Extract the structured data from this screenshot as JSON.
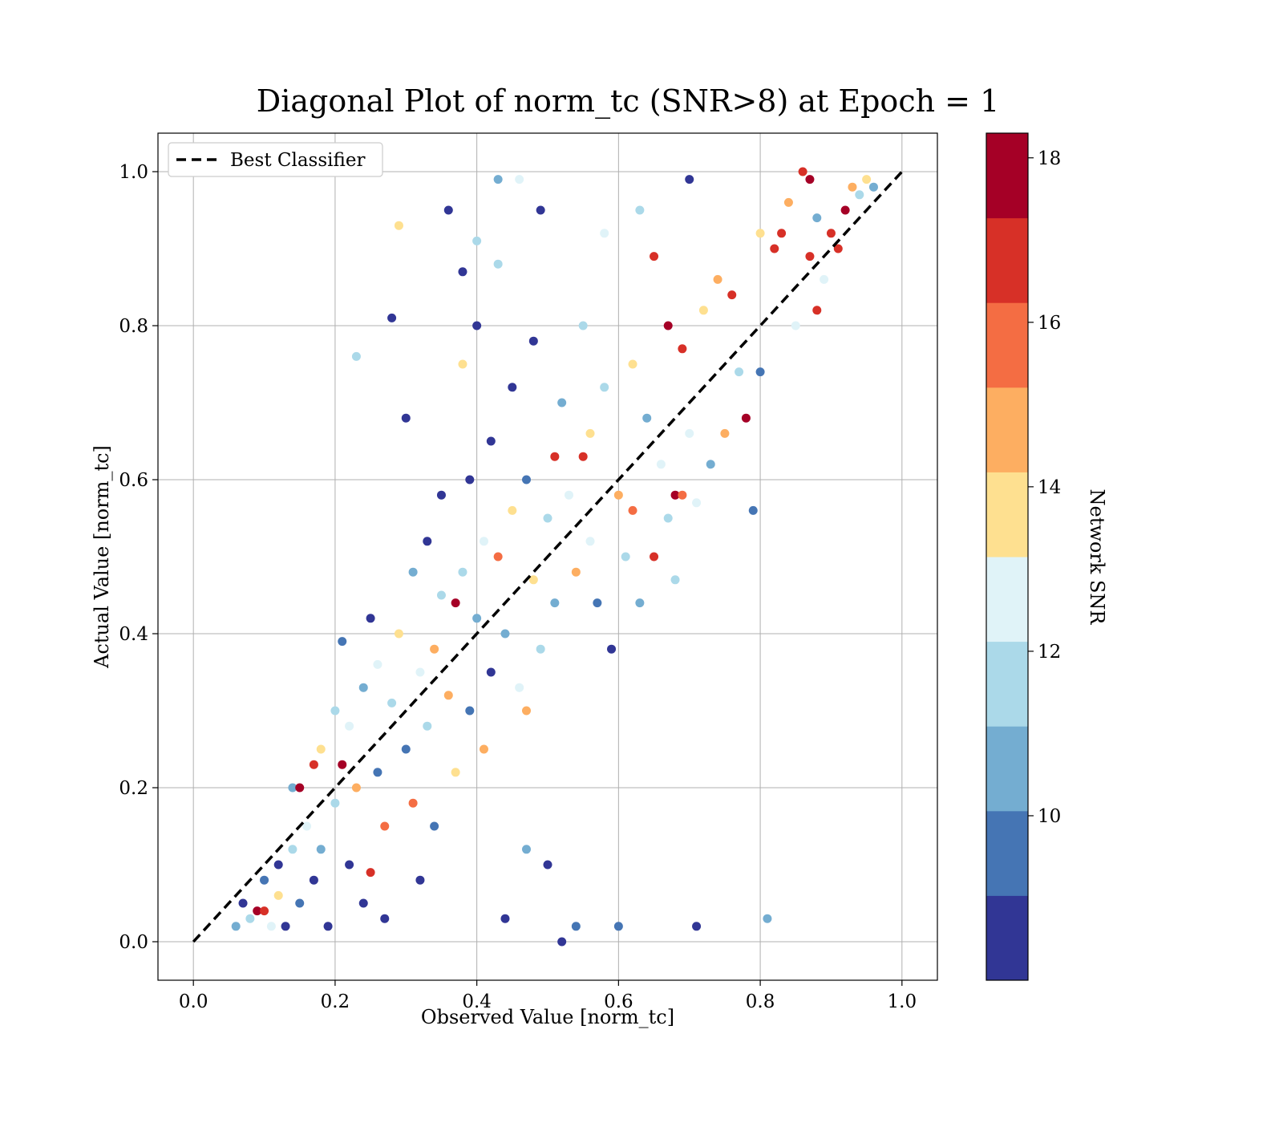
{
  "chart_data": {
    "type": "scatter",
    "title": "Diagonal Plot of norm_tc (SNR>8) at Epoch = 1",
    "xlabel": "Observed Value [norm_tc]",
    "ylabel": "Actual Value [norm_tc]",
    "xlim": [
      -0.05,
      1.05
    ],
    "ylim": [
      -0.05,
      1.05
    ],
    "xticks": [
      "0.0",
      "0.2",
      "0.4",
      "0.6",
      "0.8",
      "1.0"
    ],
    "yticks": [
      "0.0",
      "0.2",
      "0.4",
      "0.6",
      "0.8",
      "1.0"
    ],
    "grid": true,
    "legend": {
      "position": "upper-left",
      "entries": [
        {
          "label": "Best Classifier",
          "style": "black dashed line",
          "x": [
            0,
            1
          ],
          "y": [
            0,
            1
          ]
        }
      ]
    },
    "colorbar": {
      "label": "Network SNR",
      "range": [
        8,
        18.3
      ],
      "ticks": [
        "10",
        "12",
        "14",
        "16",
        "18"
      ],
      "tick_values": [
        10,
        12,
        14,
        16,
        18
      ],
      "colors": [
        "#313695",
        "#4575b4",
        "#74add1",
        "#abd9e9",
        "#e0f3f8",
        "#fee090",
        "#fdae61",
        "#f46d43",
        "#d73027",
        "#a50026"
      ]
    },
    "series": [
      {
        "name": "Network SNR",
        "points": [
          {
            "x": 0.06,
            "y": 0.02,
            "c": 11
          },
          {
            "x": 0.07,
            "y": 0.05,
            "c": 8.5
          },
          {
            "x": 0.08,
            "y": 0.03,
            "c": 12
          },
          {
            "x": 0.09,
            "y": 0.04,
            "c": 17.5
          },
          {
            "x": 0.1,
            "y": 0.04,
            "c": 17
          },
          {
            "x": 0.1,
            "y": 0.08,
            "c": 10
          },
          {
            "x": 0.11,
            "y": 0.02,
            "c": 12.5
          },
          {
            "x": 0.12,
            "y": 0.1,
            "c": 9
          },
          {
            "x": 0.12,
            "y": 0.06,
            "c": 13.5
          },
          {
            "x": 0.13,
            "y": 0.02,
            "c": 8.5
          },
          {
            "x": 0.14,
            "y": 0.12,
            "c": 11.5
          },
          {
            "x": 0.14,
            "y": 0.2,
            "c": 11
          },
          {
            "x": 0.15,
            "y": 0.2,
            "c": 17.5
          },
          {
            "x": 0.15,
            "y": 0.05,
            "c": 9.5
          },
          {
            "x": 0.16,
            "y": 0.15,
            "c": 13
          },
          {
            "x": 0.17,
            "y": 0.23,
            "c": 17
          },
          {
            "x": 0.17,
            "y": 0.08,
            "c": 8.5
          },
          {
            "x": 0.18,
            "y": 0.25,
            "c": 14
          },
          {
            "x": 0.18,
            "y": 0.12,
            "c": 10.5
          },
          {
            "x": 0.19,
            "y": 0.02,
            "c": 8.5
          },
          {
            "x": 0.2,
            "y": 0.3,
            "c": 12
          },
          {
            "x": 0.2,
            "y": 0.18,
            "c": 11.5
          },
          {
            "x": 0.21,
            "y": 0.23,
            "c": 17.5
          },
          {
            "x": 0.21,
            "y": 0.39,
            "c": 9.5
          },
          {
            "x": 0.22,
            "y": 0.1,
            "c": 8.5
          },
          {
            "x": 0.22,
            "y": 0.28,
            "c": 13
          },
          {
            "x": 0.23,
            "y": 0.2,
            "c": 15
          },
          {
            "x": 0.23,
            "y": 0.76,
            "c": 11.5
          },
          {
            "x": 0.24,
            "y": 0.33,
            "c": 11
          },
          {
            "x": 0.24,
            "y": 0.05,
            "c": 9
          },
          {
            "x": 0.25,
            "y": 0.09,
            "c": 17
          },
          {
            "x": 0.25,
            "y": 0.42,
            "c": 8.5
          },
          {
            "x": 0.26,
            "y": 0.36,
            "c": 12.5
          },
          {
            "x": 0.26,
            "y": 0.22,
            "c": 10
          },
          {
            "x": 0.27,
            "y": 0.15,
            "c": 15.5
          },
          {
            "x": 0.27,
            "y": 0.03,
            "c": 8.5
          },
          {
            "x": 0.28,
            "y": 0.81,
            "c": 8.5
          },
          {
            "x": 0.28,
            "y": 0.31,
            "c": 11.5
          },
          {
            "x": 0.29,
            "y": 0.93,
            "c": 13.5
          },
          {
            "x": 0.29,
            "y": 0.4,
            "c": 14
          },
          {
            "x": 0.3,
            "y": 0.68,
            "c": 8.5
          },
          {
            "x": 0.3,
            "y": 0.25,
            "c": 9.5
          },
          {
            "x": 0.31,
            "y": 0.18,
            "c": 16
          },
          {
            "x": 0.31,
            "y": 0.48,
            "c": 11
          },
          {
            "x": 0.32,
            "y": 0.35,
            "c": 13
          },
          {
            "x": 0.32,
            "y": 0.08,
            "c": 8.5
          },
          {
            "x": 0.33,
            "y": 0.52,
            "c": 8.5
          },
          {
            "x": 0.33,
            "y": 0.28,
            "c": 12
          },
          {
            "x": 0.34,
            "y": 0.38,
            "c": 14.5
          },
          {
            "x": 0.34,
            "y": 0.15,
            "c": 10
          },
          {
            "x": 0.35,
            "y": 0.58,
            "c": 9
          },
          {
            "x": 0.35,
            "y": 0.45,
            "c": 11.5
          },
          {
            "x": 0.36,
            "y": 0.95,
            "c": 8.5
          },
          {
            "x": 0.36,
            "y": 0.32,
            "c": 15
          },
          {
            "x": 0.37,
            "y": 0.44,
            "c": 17.5
          },
          {
            "x": 0.37,
            "y": 0.22,
            "c": 13.5
          },
          {
            "x": 0.38,
            "y": 0.75,
            "c": 14
          },
          {
            "x": 0.38,
            "y": 0.87,
            "c": 8.5
          },
          {
            "x": 0.38,
            "y": 0.48,
            "c": 12
          },
          {
            "x": 0.39,
            "y": 0.3,
            "c": 9.5
          },
          {
            "x": 0.39,
            "y": 0.6,
            "c": 8.5
          },
          {
            "x": 0.4,
            "y": 0.8,
            "c": 8.5
          },
          {
            "x": 0.4,
            "y": 0.42,
            "c": 10.5
          },
          {
            "x": 0.4,
            "y": 0.91,
            "c": 11.5
          },
          {
            "x": 0.41,
            "y": 0.25,
            "c": 14.5
          },
          {
            "x": 0.41,
            "y": 0.52,
            "c": 13
          },
          {
            "x": 0.42,
            "y": 0.35,
            "c": 9
          },
          {
            "x": 0.42,
            "y": 0.65,
            "c": 8.5
          },
          {
            "x": 0.43,
            "y": 0.88,
            "c": 12
          },
          {
            "x": 0.43,
            "y": 0.99,
            "c": 10.5
          },
          {
            "x": 0.43,
            "y": 0.5,
            "c": 15.5
          },
          {
            "x": 0.44,
            "y": 0.4,
            "c": 11
          },
          {
            "x": 0.44,
            "y": 0.03,
            "c": 8.5
          },
          {
            "x": 0.45,
            "y": 0.72,
            "c": 8.5
          },
          {
            "x": 0.45,
            "y": 0.56,
            "c": 14
          },
          {
            "x": 0.46,
            "y": 0.33,
            "c": 12.5
          },
          {
            "x": 0.46,
            "y": 0.99,
            "c": 12.5
          },
          {
            "x": 0.47,
            "y": 0.3,
            "c": 15
          },
          {
            "x": 0.47,
            "y": 0.6,
            "c": 10
          },
          {
            "x": 0.47,
            "y": 0.12,
            "c": 11
          },
          {
            "x": 0.48,
            "y": 0.47,
            "c": 13.5
          },
          {
            "x": 0.48,
            "y": 0.78,
            "c": 9
          },
          {
            "x": 0.49,
            "y": 0.38,
            "c": 11.5
          },
          {
            "x": 0.49,
            "y": 0.95,
            "c": 8.5
          },
          {
            "x": 0.5,
            "y": 0.55,
            "c": 12
          },
          {
            "x": 0.5,
            "y": 0.1,
            "c": 8.5
          },
          {
            "x": 0.51,
            "y": 0.63,
            "c": 16.5
          },
          {
            "x": 0.51,
            "y": 0.44,
            "c": 10.5
          },
          {
            "x": 0.52,
            "y": 0.0,
            "c": 9
          },
          {
            "x": 0.52,
            "y": 0.7,
            "c": 11
          },
          {
            "x": 0.53,
            "y": 0.58,
            "c": 13
          },
          {
            "x": 0.54,
            "y": 0.48,
            "c": 14.5
          },
          {
            "x": 0.54,
            "y": 0.02,
            "c": 9.5
          },
          {
            "x": 0.55,
            "y": 0.63,
            "c": 17
          },
          {
            "x": 0.55,
            "y": 0.8,
            "c": 11.5
          },
          {
            "x": 0.56,
            "y": 0.52,
            "c": 12.5
          },
          {
            "x": 0.56,
            "y": 0.66,
            "c": 14
          },
          {
            "x": 0.57,
            "y": 0.44,
            "c": 10
          },
          {
            "x": 0.58,
            "y": 0.72,
            "c": 12
          },
          {
            "x": 0.58,
            "y": 0.92,
            "c": 12.5
          },
          {
            "x": 0.59,
            "y": 0.38,
            "c": 8.5
          },
          {
            "x": 0.6,
            "y": 0.58,
            "c": 15
          },
          {
            "x": 0.6,
            "y": 0.02,
            "c": 9.5
          },
          {
            "x": 0.61,
            "y": 0.5,
            "c": 11.5
          },
          {
            "x": 0.62,
            "y": 0.75,
            "c": 13.5
          },
          {
            "x": 0.62,
            "y": 0.56,
            "c": 16
          },
          {
            "x": 0.63,
            "y": 0.44,
            "c": 11
          },
          {
            "x": 0.63,
            "y": 0.95,
            "c": 11.5
          },
          {
            "x": 0.64,
            "y": 0.68,
            "c": 10.5
          },
          {
            "x": 0.65,
            "y": 0.89,
            "c": 16.5
          },
          {
            "x": 0.65,
            "y": 0.5,
            "c": 17
          },
          {
            "x": 0.66,
            "y": 0.62,
            "c": 12.5
          },
          {
            "x": 0.67,
            "y": 0.8,
            "c": 17.5
          },
          {
            "x": 0.67,
            "y": 0.55,
            "c": 11.5
          },
          {
            "x": 0.68,
            "y": 0.58,
            "c": 17.5
          },
          {
            "x": 0.68,
            "y": 0.47,
            "c": 11.5
          },
          {
            "x": 0.69,
            "y": 0.77,
            "c": 16.5
          },
          {
            "x": 0.69,
            "y": 0.58,
            "c": 16
          },
          {
            "x": 0.7,
            "y": 0.99,
            "c": 8.5
          },
          {
            "x": 0.7,
            "y": 0.66,
            "c": 13
          },
          {
            "x": 0.71,
            "y": 0.57,
            "c": 12.5
          },
          {
            "x": 0.71,
            "y": 0.02,
            "c": 8.5
          },
          {
            "x": 0.72,
            "y": 0.82,
            "c": 14
          },
          {
            "x": 0.73,
            "y": 0.62,
            "c": 11
          },
          {
            "x": 0.74,
            "y": 0.86,
            "c": 15
          },
          {
            "x": 0.75,
            "y": 0.66,
            "c": 14.5
          },
          {
            "x": 0.76,
            "y": 0.84,
            "c": 16.5
          },
          {
            "x": 0.77,
            "y": 0.74,
            "c": 12
          },
          {
            "x": 0.78,
            "y": 0.68,
            "c": 17.5
          },
          {
            "x": 0.79,
            "y": 0.56,
            "c": 9.5
          },
          {
            "x": 0.8,
            "y": 0.92,
            "c": 13.5
          },
          {
            "x": 0.8,
            "y": 0.74,
            "c": 10
          },
          {
            "x": 0.81,
            "y": 0.03,
            "c": 10.5
          },
          {
            "x": 0.82,
            "y": 0.9,
            "c": 16.5
          },
          {
            "x": 0.83,
            "y": 0.92,
            "c": 16.5
          },
          {
            "x": 0.84,
            "y": 0.96,
            "c": 15
          },
          {
            "x": 0.85,
            "y": 0.8,
            "c": 12.5
          },
          {
            "x": 0.86,
            "y": 1.0,
            "c": 16.5
          },
          {
            "x": 0.87,
            "y": 0.99,
            "c": 17.5
          },
          {
            "x": 0.87,
            "y": 0.89,
            "c": 17
          },
          {
            "x": 0.88,
            "y": 0.82,
            "c": 17
          },
          {
            "x": 0.88,
            "y": 0.94,
            "c": 11
          },
          {
            "x": 0.89,
            "y": 0.86,
            "c": 13
          },
          {
            "x": 0.9,
            "y": 0.92,
            "c": 16.5
          },
          {
            "x": 0.91,
            "y": 0.9,
            "c": 17
          },
          {
            "x": 0.92,
            "y": 0.95,
            "c": 17.5
          },
          {
            "x": 0.93,
            "y": 0.98,
            "c": 14.5
          },
          {
            "x": 0.94,
            "y": 0.97,
            "c": 12
          },
          {
            "x": 0.95,
            "y": 0.99,
            "c": 13.5
          },
          {
            "x": 0.96,
            "y": 0.98,
            "c": 11
          }
        ]
      }
    ]
  }
}
